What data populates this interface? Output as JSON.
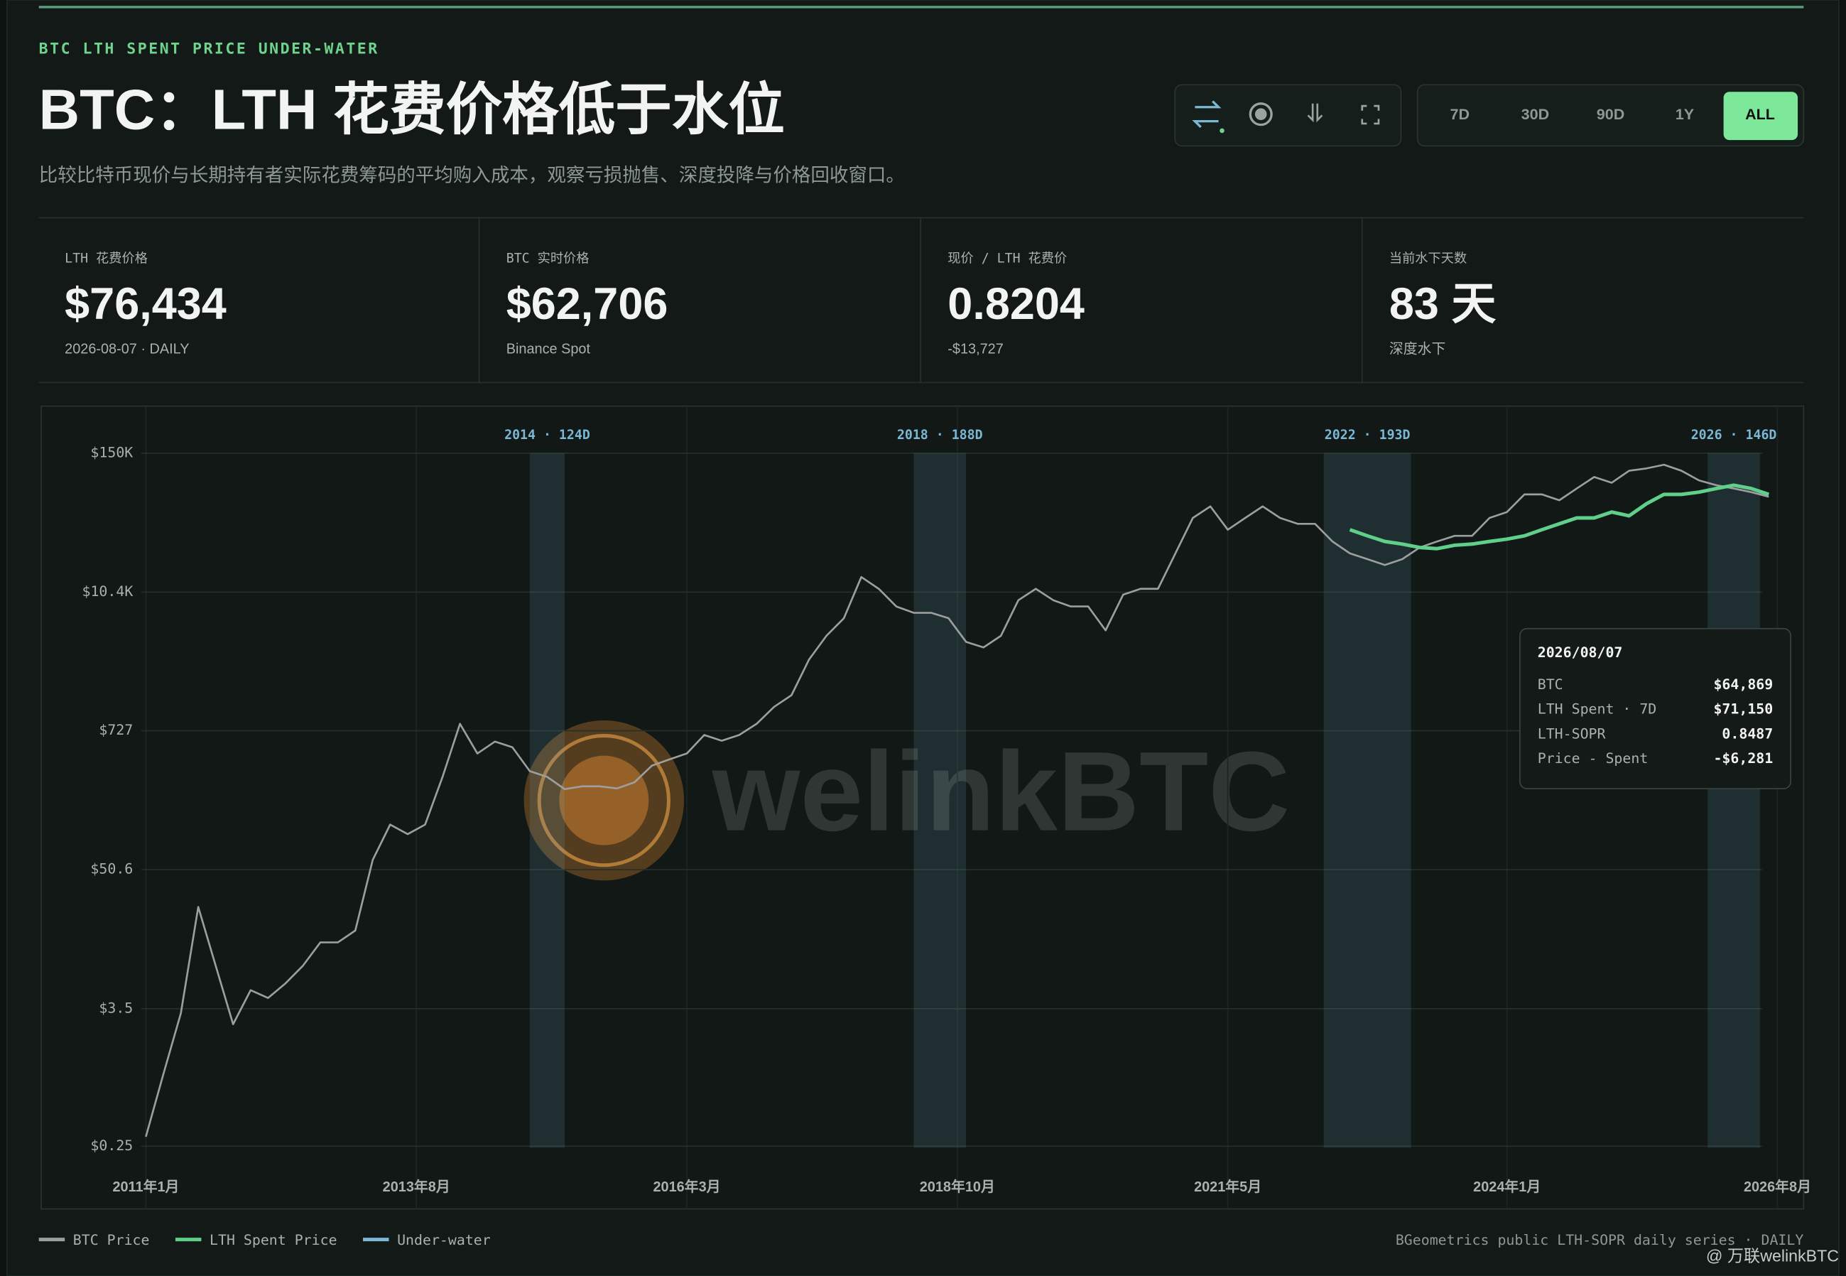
{
  "header": {
    "eyebrow": "BTC LTH SPENT PRICE UNDER-WATER",
    "title": "BTC：LTH 花费价格低于水位",
    "subtitle": "比较比特币现价与长期持有者实际花费筹码的平均购入成本，观察亏损抛售、深度投降与价格回收窗口。"
  },
  "ranges": [
    "7D",
    "30D",
    "90D",
    "1Y",
    "ALL"
  ],
  "active_range": 4,
  "stats": [
    {
      "label": "LTH 花费价格",
      "value": "$76,434",
      "note": "2026-08-07 · DAILY"
    },
    {
      "label": "BTC 实时价格",
      "value": "$62,706",
      "note": "Binance Spot"
    },
    {
      "label": "现价 / LTH 花费价",
      "value": "0.8204",
      "note": "-$13,727"
    },
    {
      "label": "当前水下天数",
      "value": "83 天",
      "note": "深度水下"
    }
  ],
  "chart_data": {
    "type": "line",
    "log_scale": true,
    "grid": true,
    "xlim": [
      "2010-01",
      "2026-11"
    ],
    "xticks": [
      {
        "value": "2011-01",
        "label": "2011年1月"
      },
      {
        "value": "2013-08",
        "label": "2013年8月"
      },
      {
        "value": "2016-03",
        "label": "2016年3月"
      },
      {
        "value": "2018-10",
        "label": "2018年10月"
      },
      {
        "value": "2021-05",
        "label": "2021年5月"
      },
      {
        "value": "2024-01",
        "label": "2024年1月"
      },
      {
        "value": "2026-08",
        "label": "2026年8月"
      }
    ],
    "ylim": [
      0.075,
      370000
    ],
    "yticks": [
      {
        "value": 0.25,
        "label": "$0.25"
      },
      {
        "value": 3.5,
        "label": "$3.5"
      },
      {
        "value": 50.6,
        "label": "$50.6"
      },
      {
        "value": 727,
        "label": "$727"
      },
      {
        "value": 10400,
        "label": "$10.4K"
      },
      {
        "value": 150000,
        "label": "$150K"
      }
    ],
    "series": [
      {
        "name": "BTC Price",
        "color": "#9c9f9d",
        "x": [
          "2011-01",
          "2011-03",
          "2011-05",
          "2011-07",
          "2011-09",
          "2011-11",
          "2012-01",
          "2012-03",
          "2012-05",
          "2012-07",
          "2012-09",
          "2012-11",
          "2013-01",
          "2013-03",
          "2013-05",
          "2013-07",
          "2013-09",
          "2013-11",
          "2014-01",
          "2014-03",
          "2014-05",
          "2014-07",
          "2014-09",
          "2014-11",
          "2015-01",
          "2015-03",
          "2015-05",
          "2015-07",
          "2015-09",
          "2015-11",
          "2016-01",
          "2016-03",
          "2016-05",
          "2016-07",
          "2016-09",
          "2016-11",
          "2017-01",
          "2017-03",
          "2017-05",
          "2017-07",
          "2017-09",
          "2017-11",
          "2018-01",
          "2018-03",
          "2018-05",
          "2018-07",
          "2018-09",
          "2018-11",
          "2019-01",
          "2019-03",
          "2019-05",
          "2019-07",
          "2019-09",
          "2019-11",
          "2020-01",
          "2020-03",
          "2020-05",
          "2020-07",
          "2020-09",
          "2020-11",
          "2021-01",
          "2021-03",
          "2021-05",
          "2021-07",
          "2021-09",
          "2021-11",
          "2022-01",
          "2022-03",
          "2022-05",
          "2022-07",
          "2022-09",
          "2022-11",
          "2023-01",
          "2023-03",
          "2023-05",
          "2023-07",
          "2023-09",
          "2023-11",
          "2024-01",
          "2024-03",
          "2024-05",
          "2024-07",
          "2024-09",
          "2024-11",
          "2025-01",
          "2025-03",
          "2025-05",
          "2025-07",
          "2025-09",
          "2025-11",
          "2026-01",
          "2026-03",
          "2026-05",
          "2026-07"
        ],
        "values": [
          0.3,
          1.0,
          3.2,
          24.7,
          8,
          2.6,
          5,
          4.3,
          5.7,
          8,
          12.5,
          12.5,
          15.7,
          61,
          120,
          100,
          120,
          300,
          830,
          470,
          590,
          530,
          335,
          300,
          237,
          250,
          250,
          240,
          270,
          372,
          420,
          470,
          670,
          600,
          670,
          830,
          1150,
          1440,
          2850,
          4500,
          6300,
          13900,
          11100,
          7900,
          7000,
          7000,
          6300,
          4000,
          3600,
          4500,
          8900,
          11100,
          8900,
          7900,
          7900,
          5000,
          9900,
          11100,
          11100,
          21900,
          43200,
          54000,
          34500,
          43200,
          54000,
          43200,
          38600,
          38600,
          27500,
          21900,
          19600,
          17500,
          19600,
          24500,
          27500,
          30700,
          30700,
          43200,
          48400,
          68000,
          68000,
          60700,
          76000,
          95000,
          85000,
          107000,
          112000,
          120000,
          107000,
          89000,
          81000,
          76000,
          71000,
          65000
        ]
      },
      {
        "name": "LTH Spent Price",
        "color": "#5fcf8a",
        "x": [
          "2022-07",
          "2022-09",
          "2022-11",
          "2023-01",
          "2023-03",
          "2023-05",
          "2023-07",
          "2023-09",
          "2023-11",
          "2024-01",
          "2024-03",
          "2024-05",
          "2024-07",
          "2024-09",
          "2024-11",
          "2025-01",
          "2025-03",
          "2025-05",
          "2025-07",
          "2025-09",
          "2025-11",
          "2026-01",
          "2026-03",
          "2026-05",
          "2026-07"
        ],
        "values": [
          34500,
          30700,
          27500,
          26200,
          24500,
          24000,
          25600,
          26200,
          27500,
          28800,
          30700,
          34500,
          38600,
          43200,
          43200,
          48400,
          45000,
          56800,
          68000,
          68000,
          71000,
          76000,
          81000,
          76000,
          68000
        ]
      }
    ],
    "underwater": {
      "name": "Under-water",
      "color": "#7ab8d6",
      "periods": [
        {
          "start": "2014-09",
          "end": "2015-01",
          "label": "2014 · 124D"
        },
        {
          "start": "2018-05",
          "end": "2018-11",
          "label": "2018 · 188D"
        },
        {
          "start": "2022-04",
          "end": "2023-02",
          "label": "2022 · 193D"
        },
        {
          "start": "2025-12",
          "end": "2026-06",
          "label": "2026 · 146D"
        }
      ]
    },
    "source": "BGeometrics public LTH-SOPR daily series · DAILY"
  },
  "tooltip": {
    "date": "2026/08/07",
    "rows": [
      {
        "label": "BTC",
        "value": "$64,869"
      },
      {
        "label": "LTH Spent · 7D",
        "value": "$71,150"
      },
      {
        "label": "LTH-SOPR",
        "value": "0.8487"
      },
      {
        "label": "Price - Spent",
        "value": "-$6,281"
      }
    ]
  },
  "watermark": "welinkBTC",
  "credit": "@ 万联welinkBTC"
}
